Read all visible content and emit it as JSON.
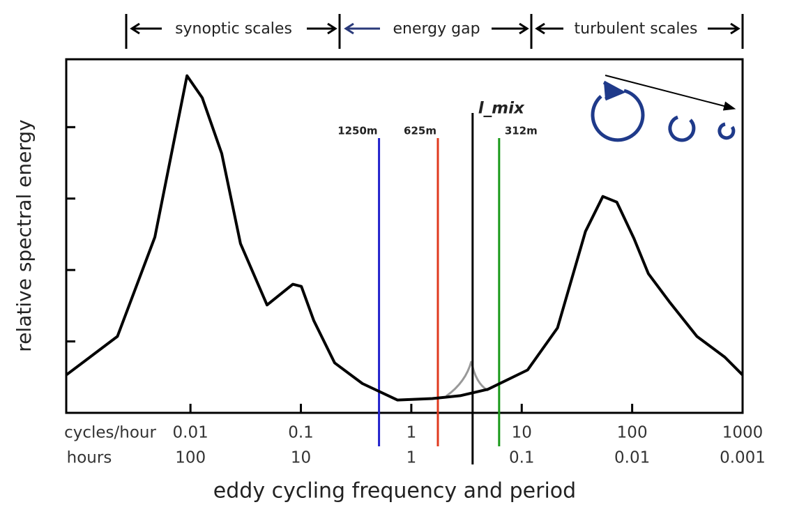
{
  "chart_data": {
    "type": "line",
    "x_label": "eddy cycling frequency and period",
    "y_label": "relative spectral energy",
    "regions": [
      "synoptic scales",
      "energy gap",
      "turbulent scales"
    ],
    "x": [
      0.00075,
      0.00218,
      0.00476,
      0.0093,
      0.0128,
      0.0192,
      0.0284,
      0.0494,
      0.0846,
      0.101,
      0.131,
      0.202,
      0.361,
      0.748,
      1.55,
      2.77,
      4.94,
      11.3,
      21.1,
      37.8,
      54.3,
      72.6,
      104,
      140,
      216,
      386,
      690,
      1000
    ],
    "values": [
      0.53,
      1.07,
      2.46,
      4.72,
      4.41,
      3.63,
      2.37,
      1.51,
      1.8,
      1.77,
      1.29,
      0.7,
      0.41,
      0.18,
      0.2,
      0.24,
      0.33,
      0.6,
      1.19,
      2.54,
      3.03,
      2.95,
      2.44,
      1.95,
      1.56,
      1.07,
      0.78,
      0.53
    ],
    "color": "#000000",
    "log_x": true,
    "xlim": [
      0.00075,
      1000
    ],
    "ylim": [
      0,
      4.95
    ],
    "xticks": [
      0.01,
      0.1,
      1,
      10,
      100,
      1000
    ],
    "xtick_row_label": "cycles/hour",
    "period_ticks": [
      100,
      10,
      1,
      0.1,
      0.01,
      0.001
    ],
    "period_row_label": "hours",
    "yticks": [
      1,
      2,
      3,
      4
    ],
    "markers": [
      {
        "label": "1250m",
        "x": 0.51,
        "color": "#2222cc"
      },
      {
        "label": "625m",
        "x": 1.74,
        "color": "#e03a1e"
      },
      {
        "label": "l_mix",
        "x": 3.59,
        "color": "#000000"
      },
      {
        "label": "312m",
        "x": 6.24,
        "color": "#1a9a1a"
      }
    ]
  }
}
